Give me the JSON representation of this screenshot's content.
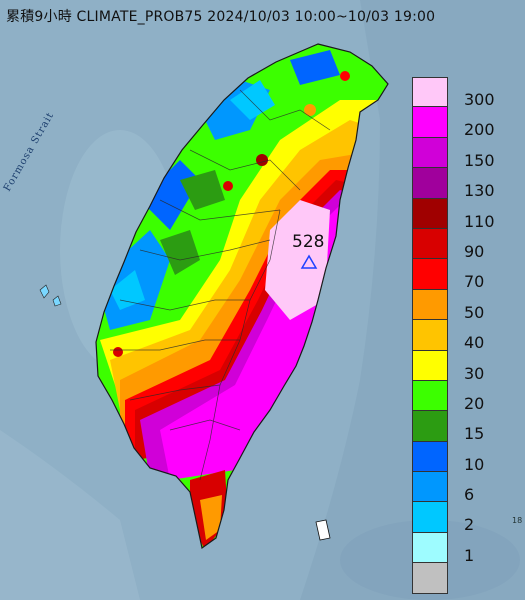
{
  "header": {
    "title": "累積9小時 CLIMATE_PROB75 2024/10/03 10:00~10/03 19:00"
  },
  "map": {
    "strait_label": "Formosa Strait",
    "max_value_label": "528",
    "corner_label": "18"
  },
  "legend": {
    "items": [
      {
        "label": "300",
        "color": "#ffc8f8"
      },
      {
        "label": "200",
        "color": "#ff00ff"
      },
      {
        "label": "150",
        "color": "#d000d8"
      },
      {
        "label": "130",
        "color": "#a0009c"
      },
      {
        "label": "110",
        "color": "#a00000"
      },
      {
        "label": "90",
        "color": "#d80000"
      },
      {
        "label": "70",
        "color": "#ff0000"
      },
      {
        "label": "50",
        "color": "#ff9a00"
      },
      {
        "label": "40",
        "color": "#ffc400"
      },
      {
        "label": "30",
        "color": "#ffff00"
      },
      {
        "label": "20",
        "color": "#3cff00"
      },
      {
        "label": "15",
        "color": "#2c9c12"
      },
      {
        "label": "10",
        "color": "#0065ff"
      },
      {
        "label": "6",
        "color": "#0097fe"
      },
      {
        "label": "2",
        "color": "#00c8ff"
      },
      {
        "label": "1",
        "color": "#9efcff"
      },
      {
        "label": "",
        "color": "#c0c0c0"
      }
    ]
  }
}
